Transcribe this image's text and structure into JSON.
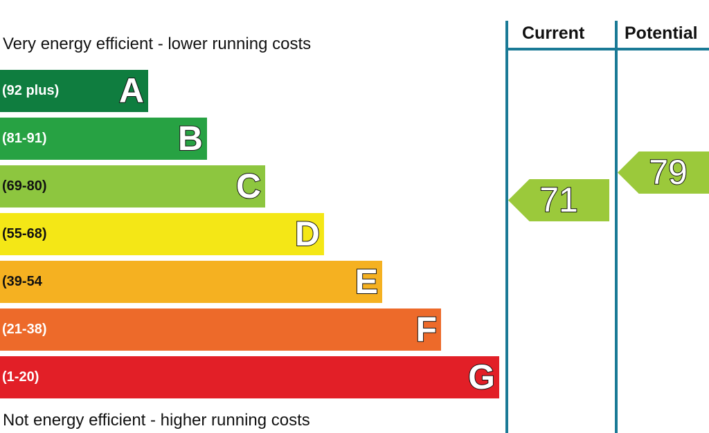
{
  "chart_data": {
    "type": "bar",
    "top_caption": "Very energy efficient - lower running costs",
    "bottom_caption": "Not energy efficient - higher running costs",
    "bands": [
      {
        "letter": "A",
        "range": "(92 plus)",
        "color": "#0f7d3f",
        "dark_text": false,
        "level": 1
      },
      {
        "letter": "B",
        "range": "(81-91)",
        "color": "#27a243",
        "dark_text": false,
        "level": 2
      },
      {
        "letter": "C",
        "range": "(69-80)",
        "color": "#8dc63f",
        "dark_text": true,
        "level": 3
      },
      {
        "letter": "D",
        "range": "(55-68)",
        "color": "#f4e716",
        "dark_text": true,
        "level": 4
      },
      {
        "letter": "E",
        "range": "(39-54",
        "color": "#f5b121",
        "dark_text": true,
        "level": 5
      },
      {
        "letter": "F",
        "range": "(21-38)",
        "color": "#ed6a2a",
        "dark_text": false,
        "level": 6
      },
      {
        "letter": "G",
        "range": "(1-20)",
        "color": "#e21f27",
        "dark_text": false,
        "level": 7
      }
    ],
    "columns": {
      "current": "Current",
      "potential": "Potential"
    },
    "current": {
      "value": "71",
      "color": "#9bc93b"
    },
    "potential": {
      "value": "79",
      "color": "#9bc93b"
    }
  }
}
